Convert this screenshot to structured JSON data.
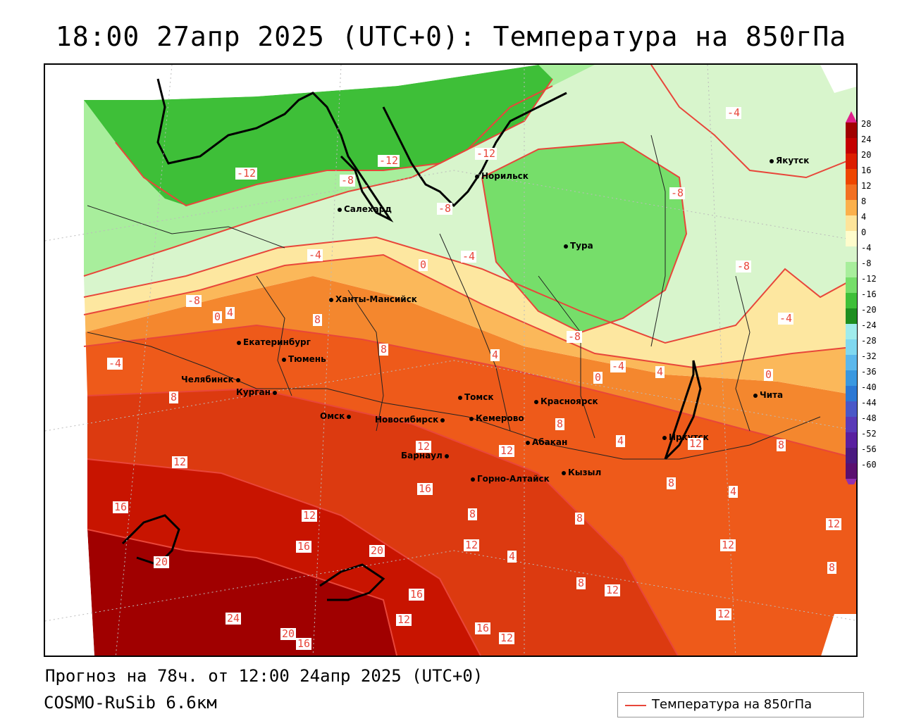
{
  "title": "18:00 27апр 2025 (UTC+0): Температура на 850гПа",
  "footer": {
    "forecast": "Прогноз на 78ч. от 12:00 24апр 2025 (UTC+0)",
    "model": "COSMO-RuSib 6.6км"
  },
  "legend": {
    "label": "Температура на 850гПа",
    "line_color": "#e8463a"
  },
  "colorbar": {
    "labels": [
      "28",
      "24",
      "20",
      "16",
      "12",
      "8",
      "4",
      "0",
      "-4",
      "-8",
      "-12",
      "-16",
      "-20",
      "-24",
      "-28",
      "-32",
      "-36",
      "-40",
      "-44",
      "-48",
      "-52",
      "-56",
      "-60"
    ],
    "colors": [
      "#a00000",
      "#c40000",
      "#dc1e00",
      "#ee4600",
      "#f27022",
      "#fbb04c",
      "#fde49a",
      "#fefccc",
      "#d8f5cc",
      "#a8ee9c",
      "#76de6a",
      "#3ebf38",
      "#1e8e20",
      "#a0ecec",
      "#80d8f0",
      "#5cb8ec",
      "#3a98e0",
      "#2c78d4",
      "#4a58c8",
      "#5a3ab8",
      "#5a20a0",
      "#4a1a80",
      "#5a1070"
    ],
    "top_color": "#e0208a",
    "bottom_color": "#9030b0"
  },
  "cities": [
    {
      "name": "Якутск"
    },
    {
      "name": "Норильск"
    },
    {
      "name": "Салехард"
    },
    {
      "name": "Тура"
    },
    {
      "name": "Ханты-Мансийск"
    },
    {
      "name": "Екатеринбург"
    },
    {
      "name": "Тюмень"
    },
    {
      "name": "Челябинск"
    },
    {
      "name": "Курган"
    },
    {
      "name": "Омск"
    },
    {
      "name": "Томск"
    },
    {
      "name": "Красноярск"
    },
    {
      "name": "Новосибирск"
    },
    {
      "name": "Кемерово"
    },
    {
      "name": "Абакан"
    },
    {
      "name": "Барнаул"
    },
    {
      "name": "Горно-Алтайск"
    },
    {
      "name": "Кызыл"
    },
    {
      "name": "Иркутск"
    },
    {
      "name": "Чита"
    }
  ],
  "isotherm_labels": [
    "-12",
    "-12",
    "-12",
    "-8",
    "-8",
    "-8",
    "-8",
    "-8",
    "-8",
    "-4",
    "-4",
    "-4",
    "-4",
    "-4",
    "-4",
    "0",
    "0",
    "0",
    "0",
    "4",
    "4",
    "4",
    "4",
    "4",
    "4",
    "8",
    "8",
    "8",
    "8",
    "8",
    "8",
    "8",
    "8",
    "8",
    "8",
    "12",
    "12",
    "12",
    "12",
    "12",
    "12",
    "12",
    "12",
    "12",
    "12",
    "12",
    "12",
    "16",
    "16",
    "16",
    "16",
    "16",
    "16",
    "20",
    "20",
    "20",
    "24"
  ]
}
